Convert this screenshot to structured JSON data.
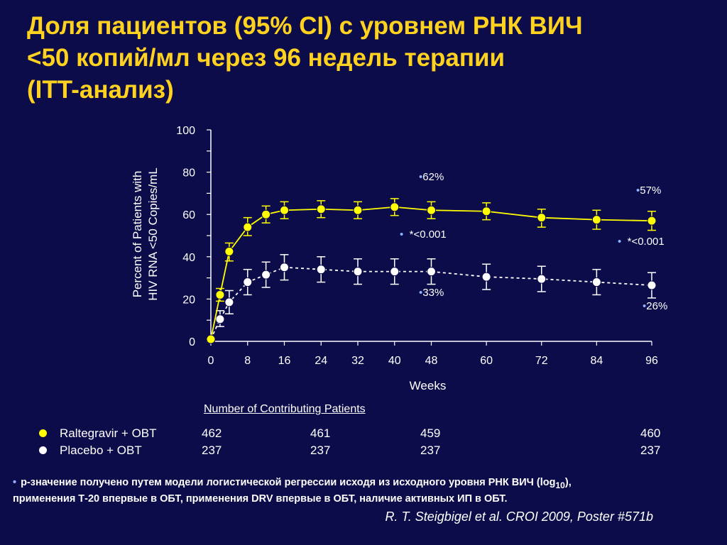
{
  "title": {
    "line1": "Доля пациентов (95% CI)  с уровнем РНК ВИЧ",
    "line2": "<50 копий/мл через 96 недель терапии",
    "line3": "(ITT-анализ)"
  },
  "chart_data": {
    "type": "line",
    "ylabel_line1": "Percent of Patients with",
    "ylabel_line2": "HIV RNA <50 Copies/mL",
    "xlabel": "Weeks",
    "ylim": [
      0,
      100
    ],
    "yticks": [
      0,
      20,
      40,
      60,
      80,
      100
    ],
    "xticks": [
      0,
      8,
      16,
      24,
      32,
      40,
      48,
      60,
      72,
      84,
      96
    ],
    "colors": {
      "raltegravir": "#ffff00",
      "placebo": "#ffffff",
      "axis": "#ffffff"
    },
    "series": [
      {
        "name": "Raltegravir + OBT",
        "line_style": "solid",
        "x": [
          0,
          2,
          4,
          8,
          12,
          16,
          24,
          32,
          40,
          48,
          60,
          72,
          84,
          96
        ],
        "values": [
          1,
          22,
          42.5,
          54,
          60,
          62,
          62.5,
          62,
          63.5,
          62,
          61.5,
          58.5,
          57.5,
          57
        ],
        "ci_low": [
          1,
          19,
          38,
          50,
          56,
          58,
          58.5,
          58,
          59.5,
          58,
          57.5,
          54,
          53,
          52.5
        ],
        "ci_high": [
          1,
          25,
          46.5,
          58.5,
          64,
          66,
          66.5,
          66,
          67.5,
          66,
          65.5,
          62.5,
          62,
          61.5
        ]
      },
      {
        "name": "Placebo + OBT",
        "line_style": "dashed",
        "x": [
          0,
          2,
          4,
          8,
          12,
          16,
          24,
          32,
          40,
          48,
          60,
          72,
          84,
          96
        ],
        "values": [
          1,
          10.5,
          18.5,
          28,
          31.5,
          35,
          34,
          33,
          33,
          33,
          30.5,
          29.5,
          28,
          26.5
        ],
        "ci_low": [
          1,
          7,
          13,
          22,
          25.5,
          29,
          28,
          27,
          27,
          27,
          24.5,
          23.5,
          22,
          20.5
        ],
        "ci_high": [
          1,
          14.5,
          24,
          34,
          37.5,
          41,
          40,
          39,
          39,
          39,
          36.5,
          35.5,
          34,
          32.5
        ]
      }
    ]
  },
  "annotations": {
    "r48": "62%",
    "p48": "*<0.001",
    "pl48": "33%",
    "r96": "57%",
    "p96": "*<0.001",
    "pl96": "26%"
  },
  "patients": {
    "heading": "Number of Contributing Patients",
    "rows": [
      {
        "label": "Raltegravir + OBT",
        "n_week0": "462",
        "n_week24": "461",
        "n_week48": "459",
        "n_week96": "460"
      },
      {
        "label": "Placebo + OBT",
        "n_week0": "237",
        "n_week24": "237",
        "n_week48": "237",
        "n_week96": "237"
      }
    ]
  },
  "footnote": {
    "part1": "p-значение получено путем модели логистической регрессии исходя из исходного уровня РНК ВИЧ (log",
    "sub": "10",
    "part2": "),",
    "line2": "применения  Т-20 впервые  в ОБТ,  применения DRV впервые в ОБТ,  наличие активных ИП в ОБТ."
  },
  "citation": "R. T. Steigbigel et al. CROI 2009, Poster #571b"
}
